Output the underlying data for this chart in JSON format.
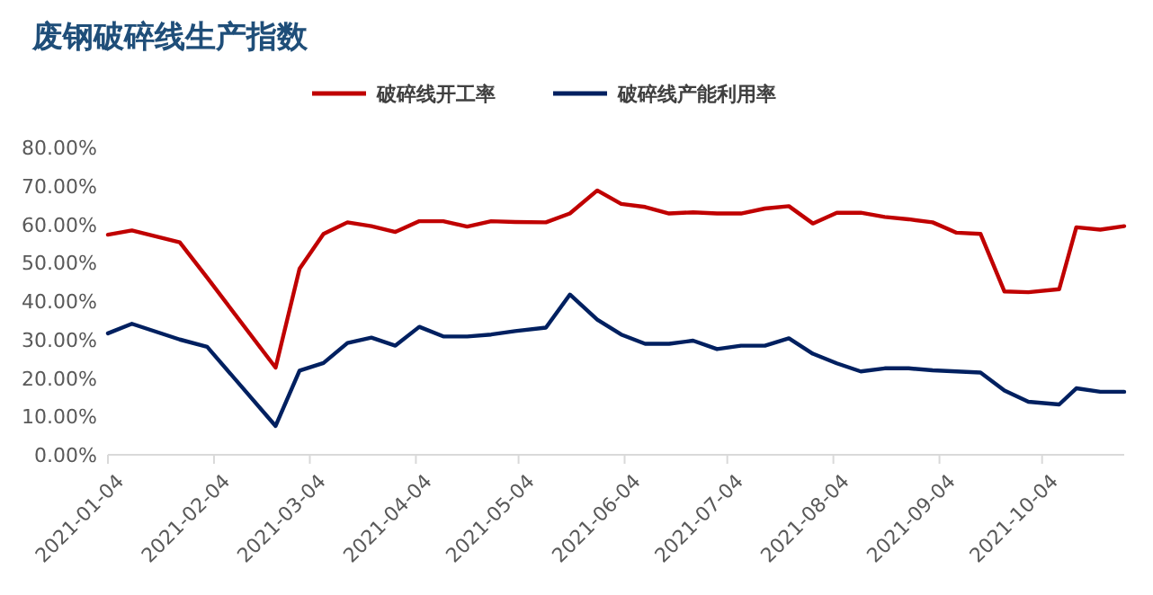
{
  "chart_data": {
    "type": "line",
    "title": "废钢破碎线生产指数",
    "x": [
      "2021-01-04",
      "2021-01-11",
      "2021-01-25",
      "2021-02-02",
      "2021-02-22",
      "2021-03-01",
      "2021-03-08",
      "2021-03-15",
      "2021-03-22",
      "2021-03-29",
      "2021-04-05",
      "2021-04-12",
      "2021-04-19",
      "2021-04-26",
      "2021-05-03",
      "2021-05-12",
      "2021-05-19",
      "2021-05-27",
      "2021-06-03",
      "2021-06-10",
      "2021-06-17",
      "2021-06-24",
      "2021-07-01",
      "2021-07-08",
      "2021-07-15",
      "2021-07-22",
      "2021-07-29",
      "2021-08-05",
      "2021-08-12",
      "2021-08-19",
      "2021-08-26",
      "2021-09-02",
      "2021-09-09",
      "2021-09-16",
      "2021-09-23",
      "2021-09-30",
      "2021-10-09",
      "2021-10-14",
      "2021-10-21",
      "2021-10-28"
    ],
    "series": [
      {
        "name": "破碎线开工率",
        "color": "#c00000",
        "values": [
          57.3,
          58.4,
          55.3,
          46.1,
          22.7,
          48.4,
          57.5,
          60.5,
          59.5,
          58.0,
          60.8,
          60.8,
          59.4,
          60.8,
          60.6,
          60.5,
          62.8,
          68.8,
          65.3,
          64.5,
          62.8,
          63.1,
          62.8,
          62.8,
          64.1,
          64.7,
          60.2,
          63.0,
          63.0,
          61.9,
          61.3,
          60.5,
          57.8,
          57.5,
          42.5,
          42.3,
          43.1,
          59.2,
          58.6,
          59.5
        ]
      },
      {
        "name": "破碎线产能利用率",
        "color": "#002060",
        "values": [
          31.6,
          34.1,
          30.0,
          28.1,
          7.5,
          21.9,
          23.9,
          29.1,
          30.5,
          28.4,
          33.3,
          30.8,
          30.8,
          31.3,
          32.2,
          33.1,
          41.7,
          35.2,
          31.3,
          28.9,
          28.9,
          29.7,
          27.5,
          28.4,
          28.4,
          30.3,
          26.3,
          23.8,
          21.7,
          22.5,
          22.5,
          22.0,
          21.7,
          21.4,
          16.7,
          13.8,
          13.1,
          17.3,
          16.4,
          16.4
        ]
      }
    ],
    "xlim": [
      "2021-01-04",
      "2021-10-28"
    ],
    "xticks": [
      "2021-01-04",
      "2021-02-04",
      "2021-03-04",
      "2021-04-04",
      "2021-05-04",
      "2021-06-04",
      "2021-07-04",
      "2021-08-04",
      "2021-09-04",
      "2021-10-04"
    ],
    "ylim": [
      0,
      80
    ],
    "yticks": [
      {
        "value": 0,
        "label": "0.00%"
      },
      {
        "value": 10,
        "label": "10.00%"
      },
      {
        "value": 20,
        "label": "20.00%"
      },
      {
        "value": 30,
        "label": "30.00%"
      },
      {
        "value": 40,
        "label": "40.00%"
      },
      {
        "value": 50,
        "label": "50.00%"
      },
      {
        "value": 60,
        "label": "60.00%"
      },
      {
        "value": 70,
        "label": "70.00%"
      },
      {
        "value": 80,
        "label": "80.00%"
      }
    ],
    "grid": false,
    "legend": "top",
    "marker": "none",
    "line_style": "solid"
  }
}
